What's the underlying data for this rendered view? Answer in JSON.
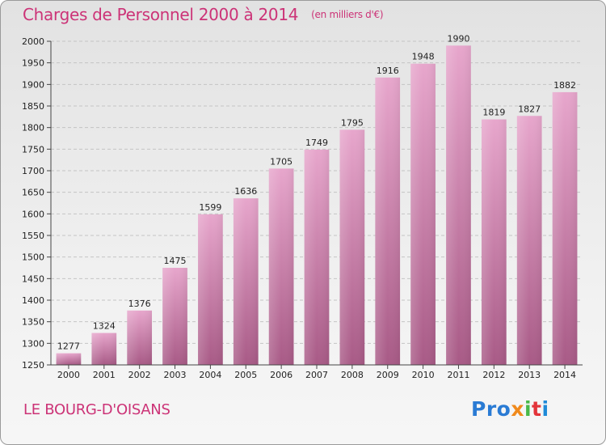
{
  "header": {
    "title": "Charges de Personnel 2000 à 2014",
    "subtitle": "(en milliers d'€)"
  },
  "footer": {
    "commune": "LE BOURG-D'OISANS",
    "logo": {
      "p1": "Pro",
      "p2": "x",
      "p3": "i",
      "p4": "t",
      "p5": "i"
    }
  },
  "colors": {
    "accent": "#cc3377",
    "bar_top": "#e7a6cc",
    "bar_bottom": "#a85a86"
  },
  "chart_data": {
    "type": "bar",
    "title": "Charges de Personnel 2000 à 2014",
    "subtitle": "(en milliers d'€)",
    "categories": [
      "2000",
      "2001",
      "2002",
      "2003",
      "2004",
      "2005",
      "2006",
      "2007",
      "2008",
      "2009",
      "2010",
      "2011",
      "2012",
      "2013",
      "2014"
    ],
    "values": [
      1277,
      1324,
      1376,
      1475,
      1599,
      1636,
      1705,
      1749,
      1795,
      1916,
      1948,
      1990,
      1819,
      1827,
      1882
    ],
    "ylim": [
      1250,
      2000
    ],
    "yticks": [
      1250,
      1300,
      1350,
      1400,
      1450,
      1500,
      1550,
      1600,
      1650,
      1700,
      1750,
      1800,
      1850,
      1900,
      1950,
      2000
    ],
    "grid": true,
    "legend": "none"
  }
}
